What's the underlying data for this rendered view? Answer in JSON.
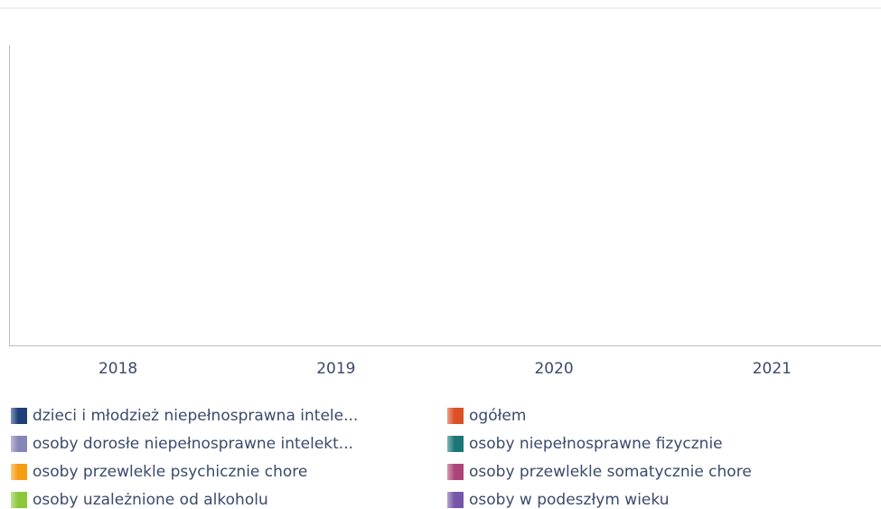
{
  "chart_data": {
    "type": "bar",
    "categories": [
      "2018",
      "2019",
      "2020",
      "2021"
    ],
    "series": [
      {
        "name": "dzieci i młodzież niepełnosprawna intele...",
        "color": "#1f3f77",
        "values": [
          null,
          null,
          null,
          null
        ]
      },
      {
        "name": "ogółem",
        "color": "#dd4f24",
        "values": [
          null,
          null,
          null,
          null
        ]
      },
      {
        "name": "osoby dorosłe niepełnosprawne intelekt...",
        "color": "#8585b8",
        "values": [
          null,
          null,
          null,
          null
        ]
      },
      {
        "name": "osoby niepełnosprawne fizycznie",
        "color": "#1b7777",
        "values": [
          null,
          null,
          null,
          null
        ]
      },
      {
        "name": "osoby przewlekle psychicznie chore",
        "color": "#f59d12",
        "values": [
          null,
          null,
          null,
          null
        ]
      },
      {
        "name": "osoby przewlekle somatycznie chore",
        "color": "#ad4477",
        "values": [
          null,
          null,
          null,
          null
        ]
      },
      {
        "name": "osoby uzależnione od alkoholu",
        "color": "#8cc63c",
        "values": [
          null,
          null,
          null,
          null
        ]
      },
      {
        "name": "osoby w podeszłym wieku",
        "color": "#7656a6",
        "values": [
          null,
          null,
          null,
          null
        ]
      }
    ]
  }
}
